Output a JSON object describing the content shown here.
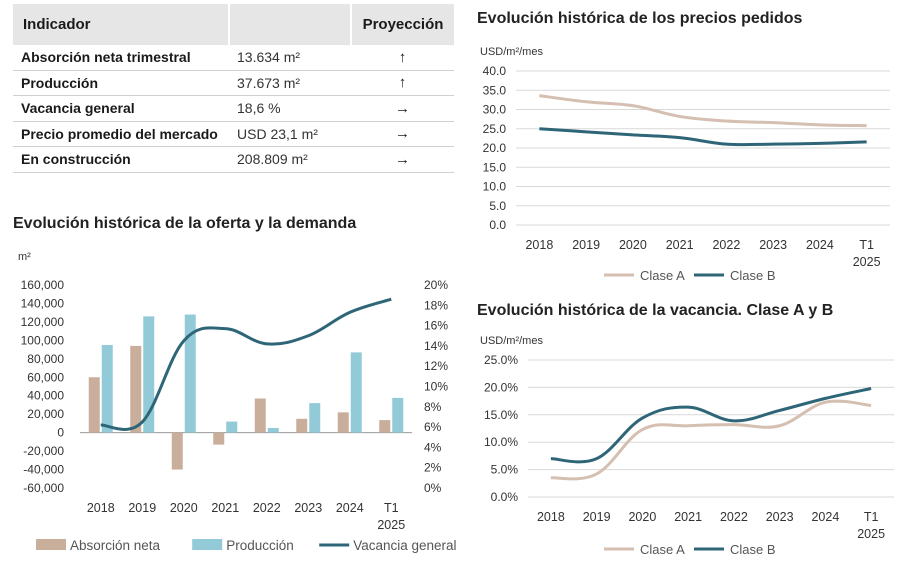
{
  "table": {
    "headers": {
      "indicator": "Indicador",
      "projection": "Proyección"
    },
    "rows": [
      {
        "label": "Absorción neta trimestral",
        "value": "13.634 m²",
        "projection": "↑"
      },
      {
        "label": "Producción",
        "value": "37.673 m²",
        "projection": "↑"
      },
      {
        "label": "Vacancia general",
        "value": "18,6 %",
        "projection": "→"
      },
      {
        "label": "Precio promedio del mercado",
        "value": "USD 23,1 m²",
        "projection": "→"
      },
      {
        "label": "En construcción",
        "value": "208.809 m²",
        "projection": "→"
      }
    ]
  },
  "chart_data": [
    {
      "type": "bar",
      "title": "Evolución histórica de la oferta y la demanda",
      "ylabel": "m²",
      "y2label": "",
      "categories": [
        "2018",
        "2019",
        "2020",
        "2021",
        "2022",
        "2023",
        "2024",
        "T1 2025"
      ],
      "ylim": [
        -60000,
        160000
      ],
      "yticks": [
        "160,000",
        "140,000",
        "120,000",
        "100,000",
        "80,000",
        "60,000",
        "40,000",
        "20,000",
        "0",
        "-20,000",
        "-40,000",
        "-60,000"
      ],
      "y2lim": [
        0,
        20
      ],
      "y2ticks": [
        "20%",
        "18%",
        "16%",
        "14%",
        "12%",
        "10%",
        "8%",
        "6%",
        "4%",
        "2%",
        "0%"
      ],
      "series": [
        {
          "name": "Absorción neta",
          "type": "bar",
          "color": "#c9ae9c",
          "values": [
            60000,
            94000,
            -40000,
            -13000,
            37000,
            15000,
            22000,
            13600
          ]
        },
        {
          "name": "Producción",
          "type": "bar",
          "color": "#93cad8",
          "values": [
            95000,
            126000,
            128000,
            12000,
            5000,
            32000,
            87000,
            37700
          ]
        },
        {
          "name": "Vacancia general",
          "type": "line",
          "axis": "secondary",
          "color": "#2e6678",
          "values": [
            6.2,
            6.5,
            14.5,
            15.7,
            14.2,
            15.0,
            17.3,
            18.6
          ]
        }
      ],
      "legend": "bottom"
    },
    {
      "type": "line",
      "title": "Evolución histórica de los precios pedidos",
      "ylabel": "USD/m²/mes",
      "categories": [
        "2018",
        "2019",
        "2020",
        "2021",
        "2022",
        "2023",
        "2024",
        "T1 2025"
      ],
      "ylim": [
        0,
        40
      ],
      "yticks": [
        "40.0",
        "35.0",
        "30.0",
        "25.0",
        "20.0",
        "15.0",
        "10.0",
        "5.0",
        "0.0"
      ],
      "grid": true,
      "series": [
        {
          "name": "Clase A",
          "color": "#d4bfb0",
          "values": [
            33.6,
            32.0,
            31.0,
            28.2,
            27.0,
            26.6,
            26.0,
            25.8
          ]
        },
        {
          "name": "Clase B",
          "color": "#2e6678",
          "values": [
            25.0,
            24.2,
            23.4,
            22.7,
            21.0,
            21.0,
            21.2,
            21.6
          ]
        }
      ],
      "legend": "bottom"
    },
    {
      "type": "line",
      "title": "Evolución histórica de la vacancia. Clase A y B",
      "ylabel": "USD/m²/mes",
      "categories": [
        "2018",
        "2019",
        "2020",
        "2021",
        "2022",
        "2023",
        "2024",
        "T1 2025"
      ],
      "ylim": [
        0,
        25
      ],
      "yticks": [
        "25.0%",
        "20.0%",
        "15.0%",
        "10.0%",
        "5.0%",
        "0.0%"
      ],
      "grid": true,
      "series": [
        {
          "name": "Clase A",
          "color": "#d4bfb0",
          "values": [
            3.5,
            4.2,
            12.3,
            13.0,
            13.2,
            13.0,
            17.3,
            16.7
          ]
        },
        {
          "name": "Clase B",
          "color": "#2e6678",
          "values": [
            7.0,
            7.0,
            14.4,
            16.4,
            13.9,
            15.8,
            18.0,
            19.8
          ]
        }
      ],
      "legend": "bottom"
    }
  ]
}
